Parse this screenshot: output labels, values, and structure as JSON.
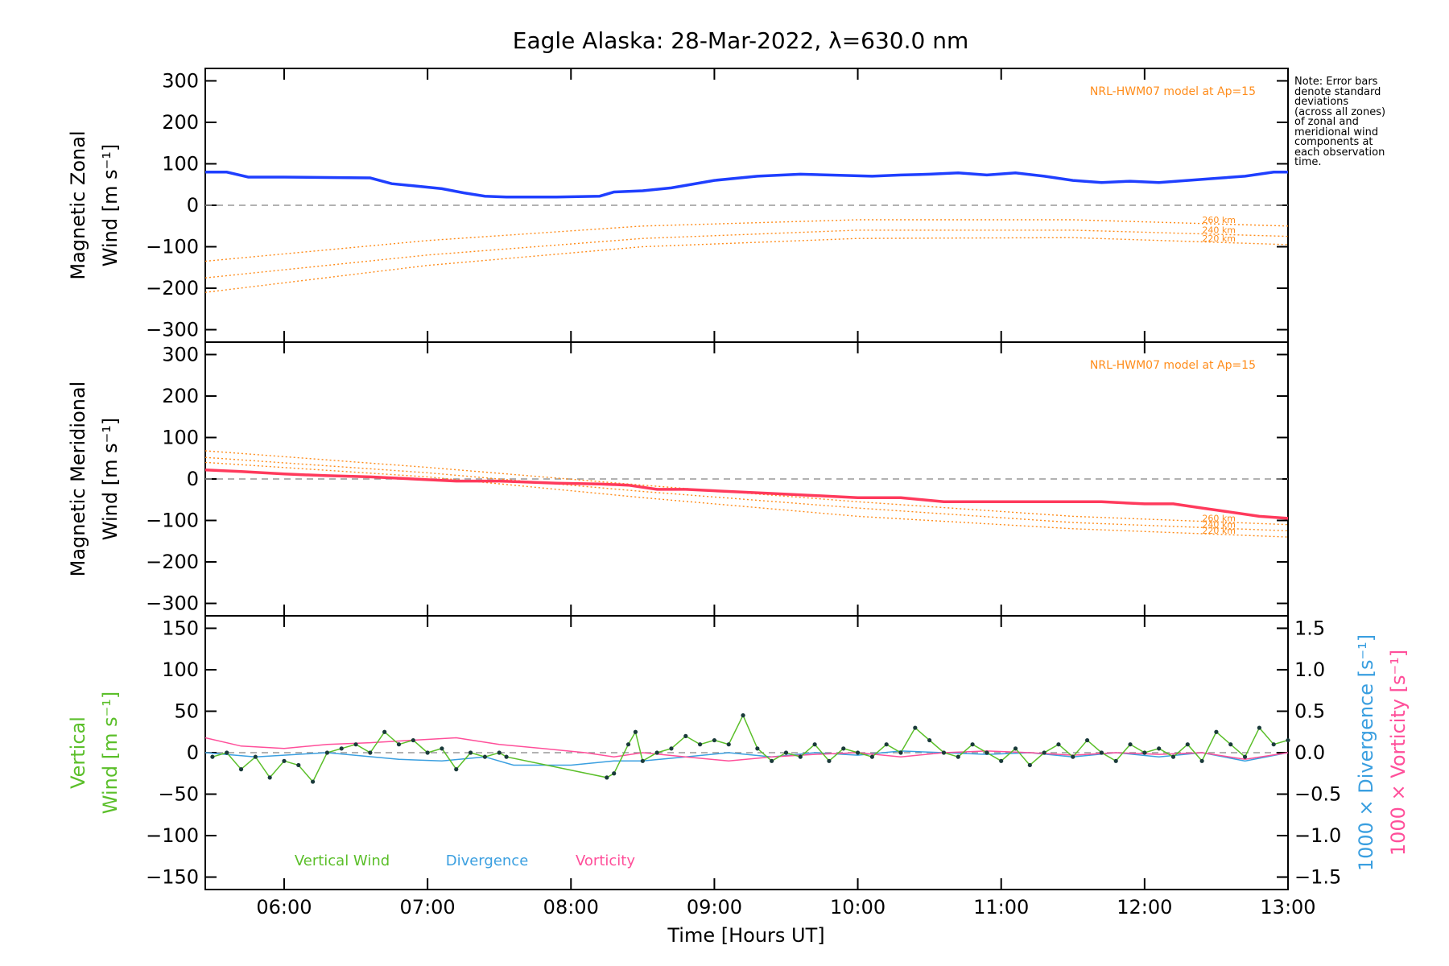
{
  "chart_data": [
    {
      "type": "line",
      "title": "Eagle Alaska: 28-Mar-2022, λ=630.0 nm",
      "ylabel_line1": "Magnetic Zonal",
      "ylabel_line2": "Wind [m s⁻¹]",
      "ylim": [
        -330,
        330
      ],
      "yticks": [
        300,
        200,
        100,
        0,
        -100,
        -200,
        -300
      ],
      "ytick_labels": [
        "300",
        "200",
        "100",
        "0",
        "−100",
        "−200",
        "−300"
      ],
      "model_label": "NRL-HWM07 model at Ap=15",
      "mean_color": "#1f3fff",
      "series": [
        {
          "name": "Mean zonal wind",
          "x": [
            5.45,
            5.6,
            5.75,
            6.0,
            6.3,
            6.6,
            6.75,
            6.9,
            7.1,
            7.25,
            7.4,
            7.55,
            7.9,
            8.2,
            8.3,
            8.5,
            8.7,
            9.0,
            9.3,
            9.6,
            9.9,
            10.1,
            10.3,
            10.5,
            10.7,
            10.9,
            11.1,
            11.3,
            11.5,
            11.7,
            11.9,
            12.1,
            12.3,
            12.5,
            12.7,
            12.9,
            13.0
          ],
          "y": [
            80,
            80,
            68,
            68,
            67,
            66,
            52,
            47,
            40,
            30,
            22,
            20,
            20,
            22,
            32,
            35,
            42,
            60,
            70,
            75,
            72,
            70,
            73,
            75,
            78,
            73,
            78,
            70,
            60,
            55,
            58,
            55,
            60,
            65,
            70,
            80,
            80
          ]
        }
      ],
      "model_lines": [
        {
          "label": "260 km",
          "x": [
            5.45,
            7.0,
            8.5,
            10.0,
            11.5,
            13.0
          ],
          "y": [
            -135,
            -85,
            -50,
            -35,
            -35,
            -50
          ]
        },
        {
          "label": "240 km",
          "x": [
            5.45,
            7.0,
            8.5,
            10.0,
            11.5,
            13.0
          ],
          "y": [
            -175,
            -120,
            -80,
            -60,
            -60,
            -75
          ]
        },
        {
          "label": "220 km",
          "x": [
            5.45,
            7.0,
            8.5,
            10.0,
            11.5,
            13.0
          ],
          "y": [
            -210,
            -145,
            -100,
            -80,
            -78,
            -95
          ]
        }
      ]
    },
    {
      "type": "line",
      "ylabel_line1": "Magnetic Meridional",
      "ylabel_line2": "Wind [m s⁻¹]",
      "ylim": [
        -330,
        330
      ],
      "yticks": [
        300,
        200,
        100,
        0,
        -100,
        -200,
        -300
      ],
      "ytick_labels": [
        "300",
        "200",
        "100",
        "0",
        "−100",
        "−200",
        "−300"
      ],
      "model_label": "NRL-HWM07 model at Ap=15",
      "mean_color": "#ff3a5c",
      "series": [
        {
          "name": "Mean meridional wind",
          "x": [
            5.45,
            5.7,
            6.0,
            6.3,
            6.6,
            6.9,
            7.2,
            7.5,
            7.9,
            8.2,
            8.4,
            8.6,
            8.8,
            9.1,
            9.4,
            9.7,
            10.0,
            10.3,
            10.6,
            10.8,
            11.1,
            11.4,
            11.7,
            12.0,
            12.2,
            12.4,
            12.6,
            12.8,
            13.0
          ],
          "y": [
            22,
            18,
            12,
            8,
            5,
            0,
            -5,
            -5,
            -10,
            -12,
            -15,
            -25,
            -25,
            -30,
            -35,
            -40,
            -45,
            -45,
            -55,
            -55,
            -55,
            -55,
            -55,
            -60,
            -60,
            -70,
            -80,
            -90,
            -95
          ]
        }
      ],
      "model_lines": [
        {
          "label": "260 km",
          "x": [
            5.45,
            7.0,
            8.5,
            10.0,
            11.5,
            13.0
          ],
          "y": [
            68,
            28,
            -15,
            -55,
            -90,
            -110
          ]
        },
        {
          "label": "240 km",
          "x": [
            5.45,
            7.0,
            8.5,
            10.0,
            11.5,
            13.0
          ],
          "y": [
            52,
            15,
            -30,
            -70,
            -105,
            -125
          ]
        },
        {
          "label": "220 km",
          "x": [
            5.45,
            7.0,
            8.5,
            10.0,
            11.5,
            13.0
          ],
          "y": [
            40,
            5,
            -45,
            -90,
            -120,
            -140
          ]
        }
      ]
    },
    {
      "type": "line",
      "ylabel_left_line1": "Vertical",
      "ylabel_left_line2": "Wind [m s⁻¹]",
      "ylabel_right_1": "1000 × Divergence [s⁻¹]",
      "ylabel_right_2": "1000 × Vorticity [s⁻¹]",
      "ylim": [
        -165,
        165
      ],
      "yticks": [
        150,
        100,
        50,
        0,
        -50,
        -100,
        -150
      ],
      "ytick_labels": [
        "150",
        "100",
        "50",
        "0",
        "−50",
        "−100",
        "−150"
      ],
      "ylim_right": [
        -1.65,
        1.65
      ],
      "yticks_right": [
        1.5,
        1.0,
        0.5,
        0.0,
        -0.5,
        -1.0,
        -1.5
      ],
      "ytick_labels_right": [
        "1.5",
        "1.0",
        "0.5",
        "0.0",
        "−0.5",
        "−1.0",
        "−1.5"
      ],
      "xlabel": "Time [Hours UT]",
      "xlim": [
        5.45,
        13.0
      ],
      "xticks": [
        6,
        7,
        8,
        9,
        10,
        11,
        12,
        13
      ],
      "xtick_labels": [
        "06:00",
        "07:00",
        "08:00",
        "09:00",
        "10:00",
        "11:00",
        "12:00",
        "13:00"
      ],
      "legend": [
        "Vertical Wind",
        "Divergence",
        "Vorticity"
      ],
      "colors": {
        "vertical": "#5bbf2a",
        "divergence": "#3a9fe0",
        "vorticity": "#ff4f9a"
      },
      "series": [
        {
          "name": "Vertical Wind",
          "x": [
            5.5,
            5.6,
            5.7,
            5.8,
            5.9,
            6.0,
            6.1,
            6.2,
            6.3,
            6.4,
            6.5,
            6.6,
            6.7,
            6.8,
            6.9,
            7.0,
            7.1,
            7.2,
            7.3,
            7.4,
            7.5,
            7.55,
            8.25,
            8.3,
            8.4,
            8.45,
            8.5,
            8.6,
            8.7,
            8.8,
            8.9,
            9.0,
            9.1,
            9.2,
            9.3,
            9.4,
            9.5,
            9.6,
            9.7,
            9.8,
            9.9,
            10.0,
            10.1,
            10.2,
            10.3,
            10.4,
            10.5,
            10.6,
            10.7,
            10.8,
            10.9,
            11.0,
            11.1,
            11.2,
            11.3,
            11.4,
            11.5,
            11.6,
            11.7,
            11.8,
            11.9,
            12.0,
            12.1,
            12.2,
            12.3,
            12.4,
            12.5,
            12.6,
            12.7,
            12.8,
            12.9,
            13.0
          ],
          "y": [
            -5,
            0,
            -20,
            -5,
            -30,
            -10,
            -15,
            -35,
            0,
            5,
            10,
            0,
            25,
            10,
            15,
            0,
            5,
            -20,
            0,
            -5,
            0,
            -5,
            -30,
            -25,
            10,
            25,
            -10,
            0,
            5,
            20,
            10,
            15,
            10,
            45,
            5,
            -10,
            0,
            -5,
            10,
            -10,
            5,
            0,
            -5,
            10,
            0,
            30,
            15,
            0,
            -5,
            10,
            0,
            -10,
            5,
            -15,
            0,
            10,
            -5,
            15,
            0,
            -10,
            10,
            0,
            5,
            -5,
            10,
            -10,
            25,
            10,
            -5,
            30,
            10,
            15
          ]
        },
        {
          "name": "Divergence",
          "x": [
            5.45,
            5.8,
            6.3,
            6.8,
            7.1,
            7.4,
            7.6,
            8.0,
            8.3,
            8.5,
            8.8,
            9.1,
            9.4,
            9.7,
            10.0,
            10.3,
            10.6,
            10.9,
            11.2,
            11.5,
            11.8,
            12.1,
            12.4,
            12.7,
            13.0
          ],
          "y": [
            0,
            -0.05,
            0.0,
            -0.08,
            -0.1,
            -0.05,
            -0.15,
            -0.15,
            -0.1,
            -0.1,
            -0.05,
            0.0,
            -0.05,
            0.0,
            -0.03,
            0.02,
            0.0,
            -0.02,
            0.0,
            -0.05,
            0.0,
            -0.05,
            0.0,
            -0.1,
            0.0
          ]
        },
        {
          "name": "Vorticity",
          "x": [
            5.45,
            5.7,
            6.0,
            6.3,
            6.6,
            6.9,
            7.2,
            7.5,
            7.8,
            8.1,
            8.3,
            8.5,
            8.8,
            9.1,
            9.4,
            9.7,
            10.0,
            10.3,
            10.6,
            10.9,
            11.2,
            11.5,
            11.8,
            12.1,
            12.4,
            12.7,
            13.0
          ],
          "y": [
            0.18,
            0.08,
            0.05,
            0.1,
            0.12,
            0.15,
            0.18,
            0.1,
            0.05,
            0.0,
            -0.05,
            0.0,
            -0.05,
            -0.1,
            -0.05,
            -0.02,
            0.0,
            -0.05,
            0.0,
            0.02,
            0.0,
            -0.03,
            0.0,
            -0.02,
            0.0,
            -0.08,
            0.0
          ]
        }
      ]
    }
  ],
  "note": "Note: Error bars\ndenote standard\ndeviations\n(across all zones)\nof zonal and\nmeridional wind\ncomponents at\neach observation\ntime."
}
